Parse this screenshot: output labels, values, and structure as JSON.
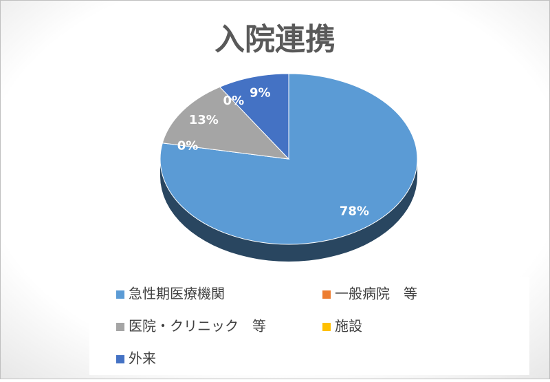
{
  "chart_data": {
    "type": "pie",
    "title": "入院連携",
    "categories": [
      "急性期医療機関",
      "一般病院　等",
      "医院・クリニック　等",
      "施設",
      "外来"
    ],
    "values": [
      78,
      0,
      13,
      0,
      9
    ],
    "value_labels": [
      "78%",
      "0%",
      "13%",
      "0%",
      "9%"
    ],
    "colors": [
      "#5b9bd5",
      "#ed7d31",
      "#a5a5a5",
      "#ffc000",
      "#4472c4"
    ],
    "legend": "bottom"
  }
}
